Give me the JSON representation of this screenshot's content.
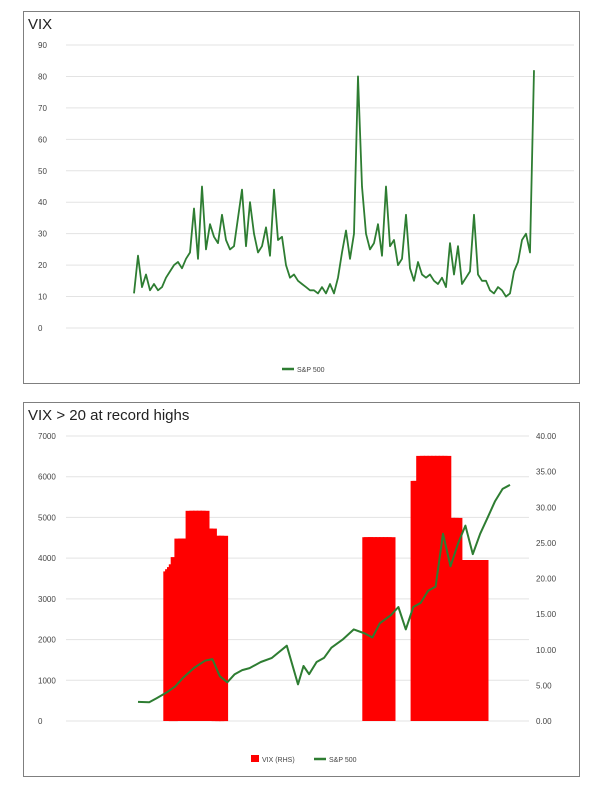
{
  "charts": [
    {
      "title": "VIX",
      "legend_label": "S&P 500"
    },
    {
      "title": "VIX > 20 at record highs",
      "legend_bar_label": "VIX (RHS)",
      "legend_line_label": "S&P 500"
    }
  ],
  "chart_data": [
    {
      "type": "line",
      "title": "VIX",
      "ylim": [
        0,
        90
      ],
      "yticks": [
        0,
        10,
        20,
        30,
        40,
        50,
        60,
        70,
        80,
        90
      ],
      "grid": true,
      "legend_position": "bottom",
      "series": [
        {
          "name": "S&P 500",
          "color": "#2e7d32",
          "x": [
            0,
            1,
            2,
            3,
            4,
            5,
            6,
            7,
            8,
            9,
            10,
            11,
            12,
            13,
            14,
            15,
            16,
            17,
            18,
            19,
            20,
            21,
            22,
            23,
            24,
            25,
            26,
            27,
            28,
            29,
            30,
            31,
            32,
            33,
            34,
            35,
            36,
            37,
            38,
            39,
            40,
            41,
            42,
            43,
            44,
            45,
            46,
            47,
            48,
            49,
            50,
            51,
            52,
            53,
            54,
            55,
            56,
            57,
            58,
            59,
            60,
            61,
            62,
            63,
            64,
            65,
            66,
            67,
            68,
            69,
            70,
            71,
            72,
            73,
            74,
            75,
            76,
            77,
            78,
            79,
            80,
            81,
            82,
            83,
            84,
            85,
            86,
            87,
            88,
            89,
            90,
            91,
            92,
            93,
            94,
            95,
            96,
            97,
            98,
            99,
            100
          ],
          "y": [
            11,
            23,
            13,
            17,
            12,
            14,
            12,
            13,
            16,
            18,
            20,
            21,
            19,
            22,
            24,
            38,
            22,
            45,
            25,
            33,
            29,
            27,
            36,
            28,
            25,
            26,
            35,
            44,
            26,
            40,
            30,
            24,
            26,
            32,
            23,
            44,
            28,
            29,
            20,
            16,
            17,
            15,
            14,
            13,
            12,
            12,
            11,
            13,
            11,
            14,
            11,
            16,
            24,
            31,
            22,
            30,
            80,
            45,
            30,
            25,
            27,
            33,
            23,
            45,
            26,
            28,
            20,
            22,
            36,
            19,
            15,
            21,
            17,
            16,
            17,
            15,
            14,
            16,
            13,
            27,
            17,
            26,
            14,
            16,
            18,
            36,
            17,
            15,
            15,
            12,
            11,
            13,
            12,
            10,
            11,
            18,
            21,
            28,
            30,
            24,
            82
          ]
        }
      ]
    },
    {
      "type": "bar+line",
      "title": "VIX > 20 at record highs",
      "ylim": [
        0,
        7000
      ],
      "yticks": [
        0,
        1000,
        2000,
        3000,
        4000,
        5000,
        6000,
        7000
      ],
      "y2lim": [
        0,
        40
      ],
      "y2ticks": [
        "0.00",
        "5.00",
        "10.00",
        "15.00",
        "20.00",
        "25.00",
        "30.00",
        "35.00",
        "40.00"
      ],
      "grid": true,
      "legend_position": "bottom",
      "series": [
        {
          "name": "VIX (RHS)",
          "type": "bar",
          "axis": "right",
          "color": "#ff0000",
          "x": [
            0.08,
            0.085,
            0.09,
            0.095,
            0.1,
            0.11,
            0.12,
            0.13,
            0.14,
            0.15,
            0.16,
            0.17,
            0.18,
            0.19,
            0.2,
            0.21,
            0.22,
            0.23,
            0.615,
            0.62,
            0.63,
            0.64,
            0.65,
            0.66,
            0.67,
            0.68,
            0.745,
            0.75,
            0.76,
            0.77,
            0.78,
            0.79,
            0.8,
            0.81,
            0.82,
            0.83,
            0.84,
            0.85,
            0.86,
            0.87,
            0.88,
            0.89,
            0.9,
            0.91,
            0.92,
            0.93
          ],
          "y": [
            21,
            21.3,
            21.6,
            22,
            23,
            25.6,
            25.6,
            25.6,
            29.5,
            29.5,
            29.5,
            29.5,
            29.5,
            27,
            27,
            26,
            26,
            26,
            25.8,
            25.8,
            25.8,
            25.8,
            25.8,
            25.8,
            25.8,
            25.8,
            33.7,
            33.7,
            37.2,
            37.2,
            37.2,
            37.2,
            37.2,
            37.2,
            37.2,
            37.2,
            28.5,
            28.5,
            28.5,
            22.6,
            22.6,
            22.6,
            22.6,
            22.6,
            22.6,
            22.6
          ]
        },
        {
          "name": "S&P 500",
          "type": "line",
          "axis": "left",
          "color": "#2e7d32",
          "x": [
            0,
            0.03,
            0.05,
            0.08,
            0.1,
            0.12,
            0.15,
            0.18,
            0.2,
            0.22,
            0.24,
            0.26,
            0.28,
            0.3,
            0.33,
            0.36,
            0.4,
            0.43,
            0.445,
            0.46,
            0.48,
            0.5,
            0.52,
            0.55,
            0.58,
            0.61,
            0.63,
            0.65,
            0.68,
            0.7,
            0.72,
            0.74,
            0.76,
            0.78,
            0.8,
            0.82,
            0.84,
            0.86,
            0.88,
            0.9,
            0.92,
            0.94,
            0.96,
            0.98,
            1
          ],
          "y": [
            470,
            460,
            560,
            720,
            850,
            1050,
            1300,
            1480,
            1520,
            1100,
            950,
            1150,
            1250,
            1300,
            1450,
            1550,
            1850,
            900,
            1350,
            1150,
            1450,
            1550,
            1800,
            2000,
            2250,
            2150,
            2050,
            2400,
            2600,
            2800,
            2250,
            2800,
            2900,
            3200,
            3300,
            4600,
            3800,
            4350,
            4800,
            4100,
            4600,
            5000,
            5400,
            5700,
            5800
          ]
        }
      ]
    }
  ]
}
